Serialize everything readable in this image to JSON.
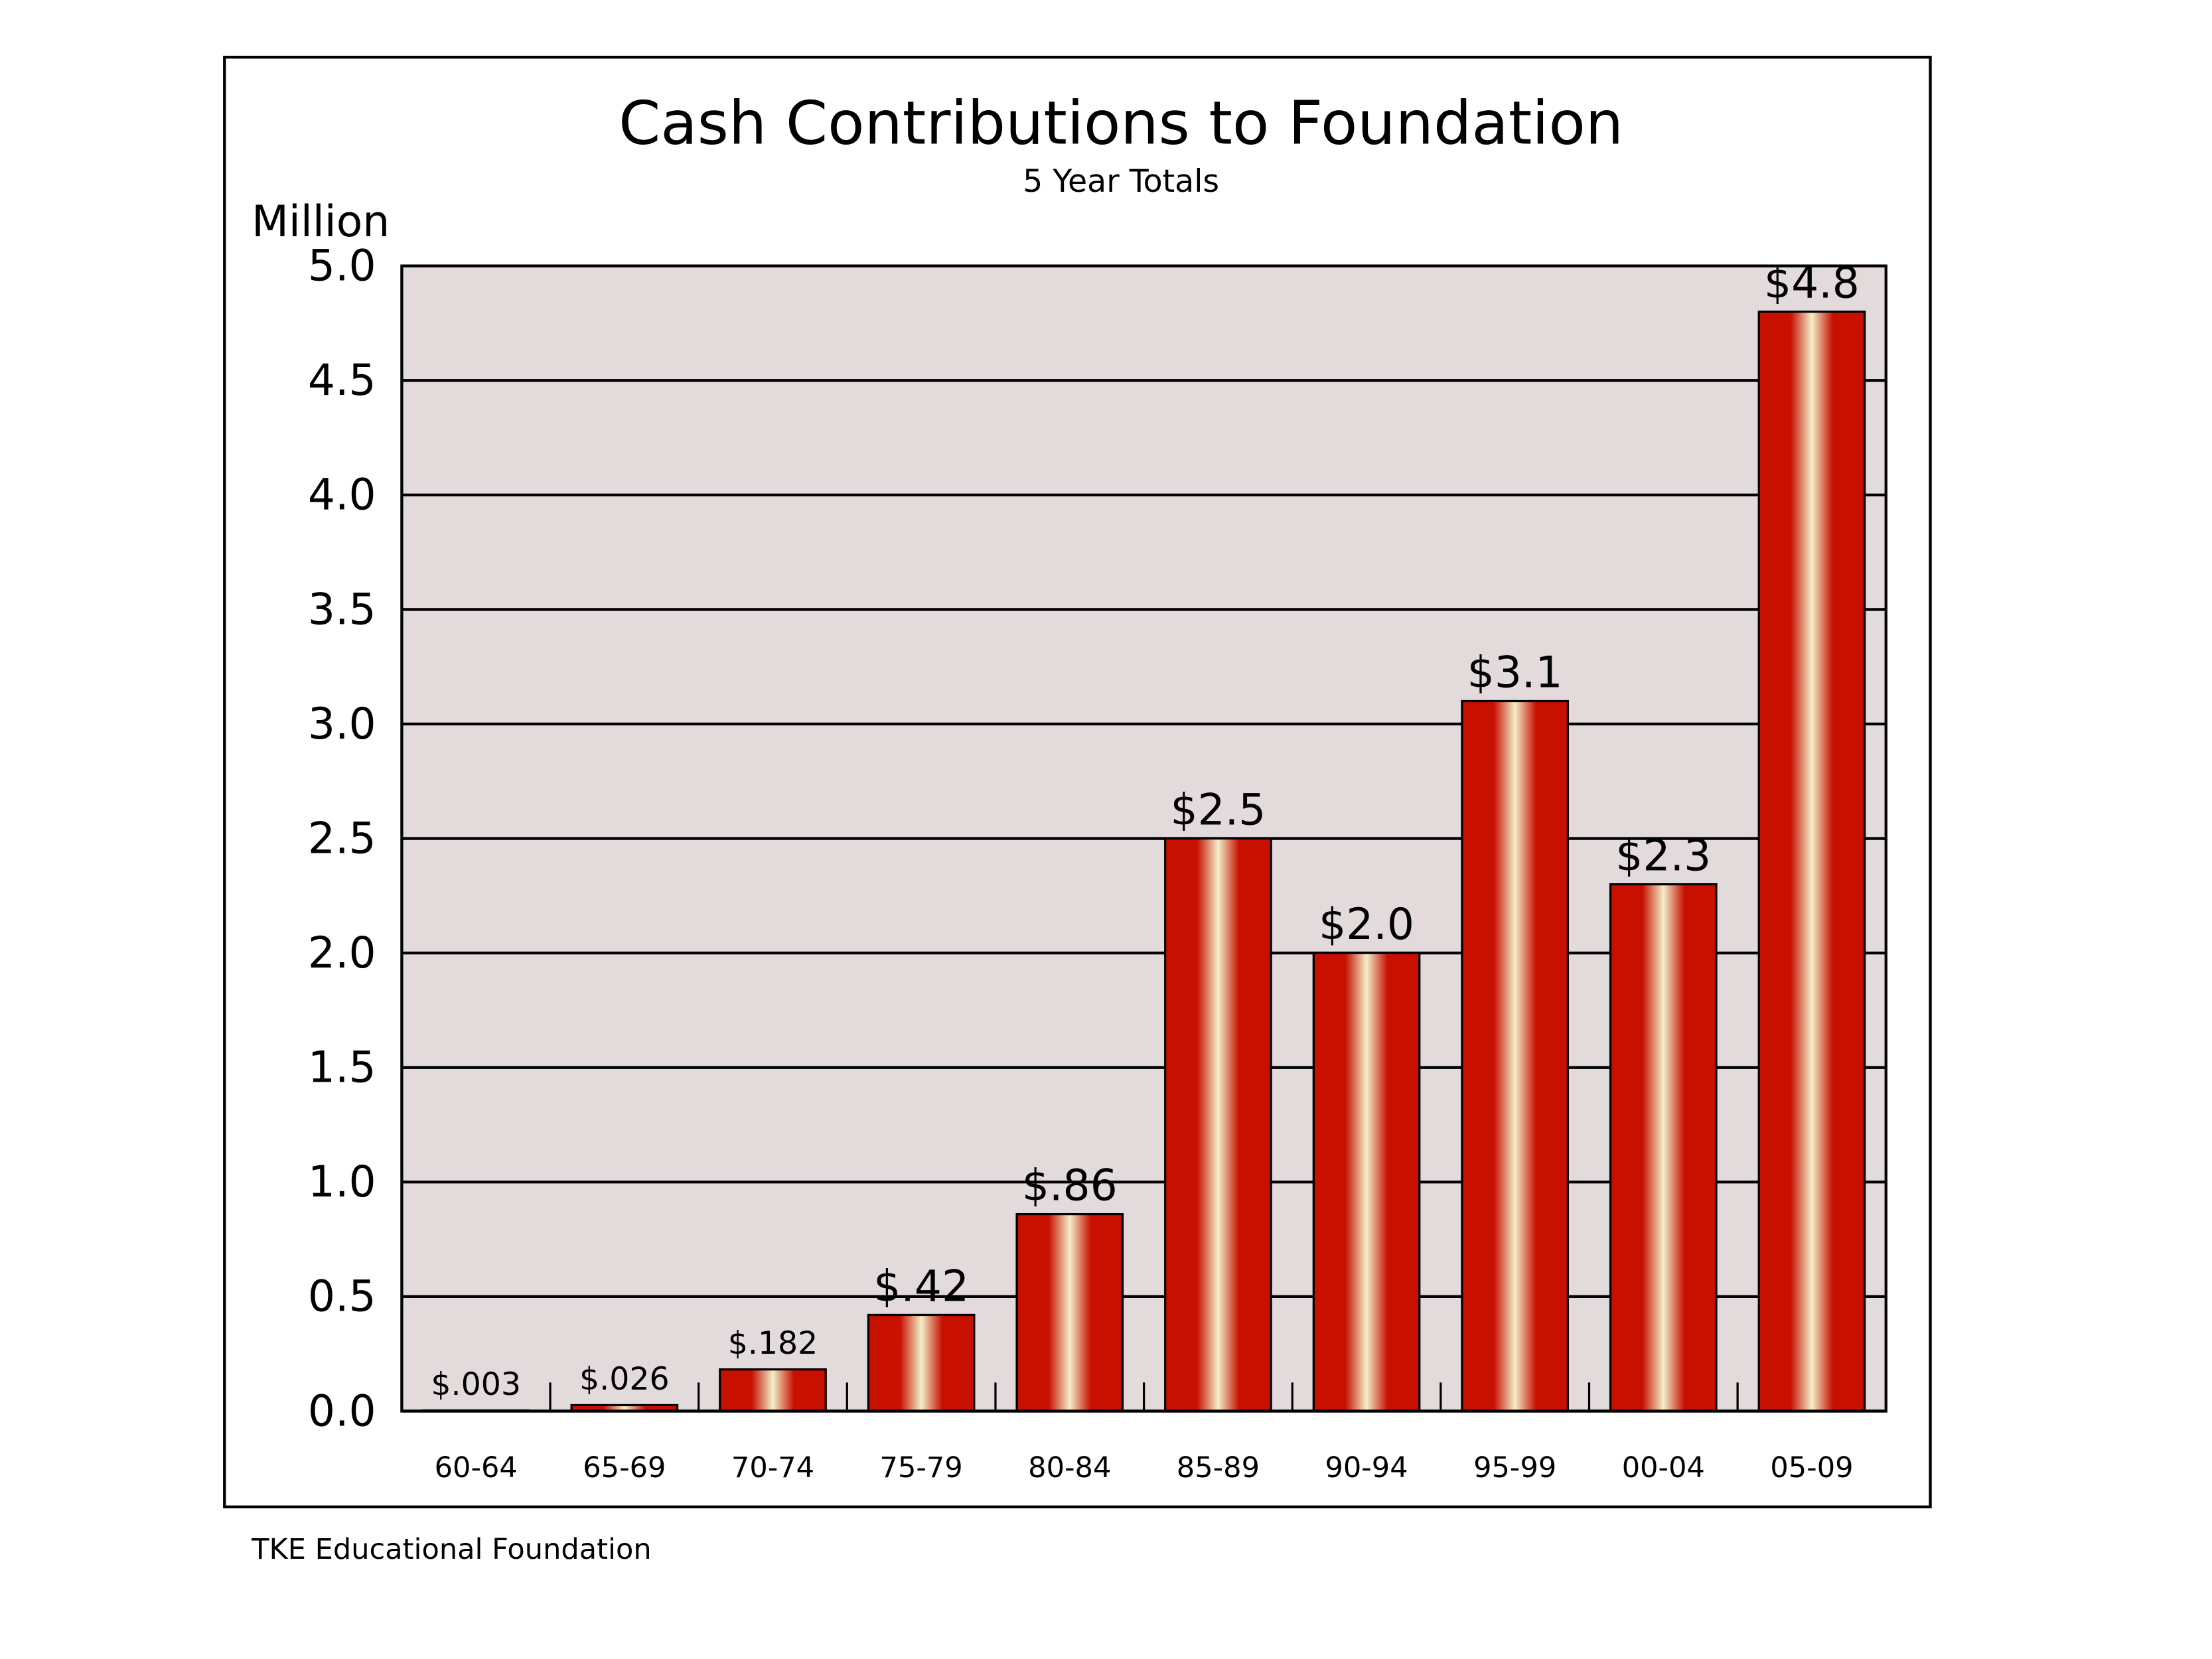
{
  "chart_data": {
    "type": "bar",
    "title": "Cash Contributions to Foundation",
    "subtitle": "5 Year Totals",
    "y_label": "Million",
    "source": "TKE Educational Foundation",
    "categories": [
      "60-64",
      "65-69",
      "70-74",
      "75-79",
      "80-84",
      "85-89",
      "90-94",
      "95-99",
      "00-04",
      "05-09"
    ],
    "values": [
      0.003,
      0.026,
      0.182,
      0.42,
      0.86,
      2.5,
      2.0,
      3.1,
      2.3,
      4.8
    ],
    "value_labels": [
      "$.003",
      "$.026",
      "$.182",
      "$.42",
      "$.86",
      "$2.5",
      "$2.0",
      "$3.1",
      "$2.3",
      "$4.8"
    ],
    "color": "#c81000",
    "ylim": [
      0,
      5
    ],
    "yticks": [
      {
        "value": 0,
        "label": "0.0"
      },
      {
        "value": 0.5,
        "label": "0.5"
      },
      {
        "value": 1,
        "label": "1.0"
      },
      {
        "value": 1.5,
        "label": "1.5"
      },
      {
        "value": 2,
        "label": "2.0"
      },
      {
        "value": 2.5,
        "label": "2.5"
      },
      {
        "value": 3,
        "label": "3.0"
      },
      {
        "value": 3.5,
        "label": "3.5"
      },
      {
        "value": 4,
        "label": "4.0"
      },
      {
        "value": 4.5,
        "label": "4.5"
      },
      {
        "value": 5,
        "label": "5.0"
      }
    ],
    "grid": true
  }
}
